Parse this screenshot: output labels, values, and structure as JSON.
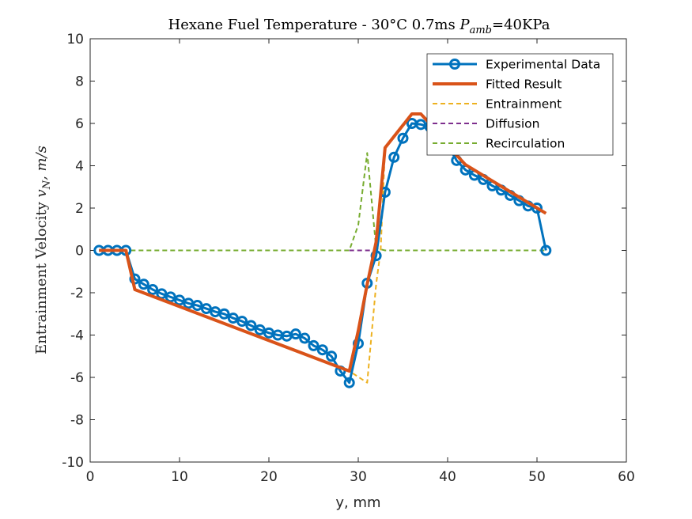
{
  "chart_data": {
    "type": "line",
    "title": "Hexane Fuel Temperature - 30°C 0.7ms P_amb=40KPa",
    "title_parts": {
      "main": "Hexane Fuel Temperature - 30°C 0.7ms ",
      "sym": "P",
      "sub": "amb",
      "tail": "=40KPa"
    },
    "xlabel": "y, mm",
    "ylabel": "Entrainment Velocity v_N, m/s",
    "ylabel_parts": {
      "main": "Entrainment Velocity ",
      "sym": "v",
      "sub": "N",
      "tail": ", m/s"
    },
    "xlim": [
      0,
      60
    ],
    "ylim": [
      -10,
      10
    ],
    "xticks": [
      0,
      10,
      20,
      30,
      40,
      50,
      60
    ],
    "yticks": [
      -10,
      -8,
      -6,
      -4,
      -2,
      0,
      2,
      4,
      6,
      8,
      10
    ],
    "grid": false,
    "legend_position": "top-right",
    "series": [
      {
        "name": "Experimental Data",
        "style": "solid-marker",
        "color": "#0072BD",
        "x": [
          1,
          2,
          3,
          4,
          5,
          6,
          7,
          8,
          9,
          10,
          11,
          12,
          13,
          14,
          15,
          16,
          17,
          18,
          19,
          20,
          21,
          22,
          23,
          24,
          25,
          26,
          27,
          28,
          29,
          30,
          31,
          32,
          33,
          34,
          35,
          36,
          37,
          38,
          39,
          40,
          41,
          42,
          43,
          44,
          45,
          46,
          47,
          48,
          49,
          50,
          51
        ],
        "y": [
          0,
          0,
          0,
          0,
          -1.35,
          -1.6,
          -1.85,
          -2.05,
          -2.2,
          -2.35,
          -2.5,
          -2.6,
          -2.75,
          -2.9,
          -3.0,
          -3.2,
          -3.35,
          -3.55,
          -3.75,
          -3.9,
          -4.0,
          -4.05,
          -3.95,
          -4.15,
          -4.5,
          -4.7,
          -5.0,
          -5.7,
          -6.25,
          -4.4,
          -1.55,
          -0.25,
          2.75,
          4.4,
          5.3,
          6.0,
          5.95,
          5.85,
          5.5,
          5.0,
          4.25,
          3.8,
          3.55,
          3.35,
          3.05,
          2.85,
          2.6,
          2.35,
          2.1,
          2.0,
          0.0
        ]
      },
      {
        "name": "Fitted Result",
        "style": "solid-thick",
        "color": "#D95319",
        "x": [
          1,
          4,
          5,
          29,
          30,
          31,
          32,
          33,
          36,
          37,
          38,
          39,
          40,
          41,
          42,
          51
        ],
        "y": [
          0,
          0,
          -1.85,
          -5.7,
          -3.8,
          -1.6,
          0.4,
          4.85,
          6.45,
          6.45,
          6.0,
          5.6,
          5.0,
          4.5,
          4.05,
          1.75
        ]
      },
      {
        "name": "Entrainment",
        "style": "dashed",
        "color": "#EDB120",
        "x": [
          1,
          4,
          5,
          29,
          31,
          32,
          32.5,
          33,
          36,
          37,
          38,
          39,
          40,
          41,
          42,
          51
        ],
        "y": [
          0,
          0,
          -1.85,
          -5.7,
          -6.25,
          -1.6,
          0,
          4.85,
          6.45,
          6.45,
          6.0,
          5.6,
          5.0,
          4.5,
          4.05,
          1.75
        ]
      },
      {
        "name": "Diffusion",
        "style": "dashed",
        "color": "#7E2F8E",
        "x": [
          29,
          32,
          33
        ],
        "y": [
          0,
          0,
          4.85
        ]
      },
      {
        "name": "Recirculation",
        "style": "dashed",
        "color": "#77AC30",
        "x": [
          1,
          29,
          30,
          31,
          32,
          33,
          51
        ],
        "y": [
          0,
          0,
          1.2,
          4.6,
          0.1,
          0,
          0
        ]
      }
    ]
  }
}
